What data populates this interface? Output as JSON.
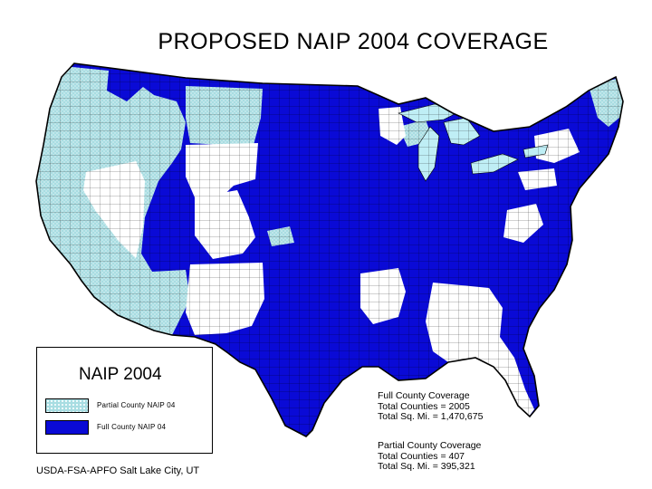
{
  "title": "PROPOSED NAIP 2004 COVERAGE",
  "legend": {
    "title": "NAIP 2004",
    "items": [
      {
        "label": "Partial County NAIP 04",
        "color": "#a8dde2"
      },
      {
        "label": "Full County NAIP 04",
        "color": "#0a0ad6"
      }
    ]
  },
  "credit": "USDA-FSA-APFO Salt Lake City, UT",
  "stats": {
    "full": {
      "heading": "Full County Coverage",
      "counties": "Total Counties = 2005",
      "area": "Total Sq. Mi. = 1,470,675"
    },
    "partial": {
      "heading": "Partial County Coverage",
      "counties": "Total Counties = 407",
      "area": "Total Sq. Mi. = 395,321"
    }
  },
  "colors": {
    "full": "#0a0ad6",
    "partial": "#a8dde2",
    "none": "#ffffff",
    "lakes": "#bfeef5",
    "border": "#000000"
  }
}
